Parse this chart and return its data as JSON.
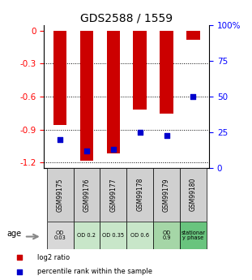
{
  "title": "GDS2588 / 1559",
  "samples": [
    "GSM99175",
    "GSM99176",
    "GSM99177",
    "GSM99178",
    "GSM99179",
    "GSM99180"
  ],
  "log2_ratio": [
    -0.855,
    -1.18,
    -1.12,
    -0.72,
    -0.755,
    -0.08
  ],
  "percentile": [
    20,
    12,
    13,
    25,
    23,
    50
  ],
  "ylim_left": [
    -1.25,
    0.05
  ],
  "ylim_right": [
    0,
    100
  ],
  "yticks_left": [
    0,
    -0.3,
    -0.6,
    -0.9,
    -1.2
  ],
  "yticks_right": [
    0,
    25,
    50,
    75,
    100
  ],
  "bar_color": "#cc0000",
  "dot_color": "#0000cc",
  "bar_width": 0.5,
  "dot_size": 18,
  "annotation_labels": [
    "OD\n0.03",
    "OD 0.2",
    "OD 0.35",
    "OD 0.6",
    "OD\n0.9",
    "stationar\ny phase"
  ],
  "annotation_bg_colors": [
    "#d8d8d8",
    "#c8e6c9",
    "#c8e6c9",
    "#c8e6c9",
    "#a5d6a7",
    "#69c47e"
  ],
  "sample_bg_color": "#d0d0d0",
  "age_label": "age",
  "legend_items": [
    "log2 ratio",
    "percentile rank within the sample"
  ],
  "legend_colors": [
    "#cc0000",
    "#0000cc"
  ],
  "title_fontsize": 10,
  "tick_fontsize": 7.5,
  "label_fontsize": 7
}
